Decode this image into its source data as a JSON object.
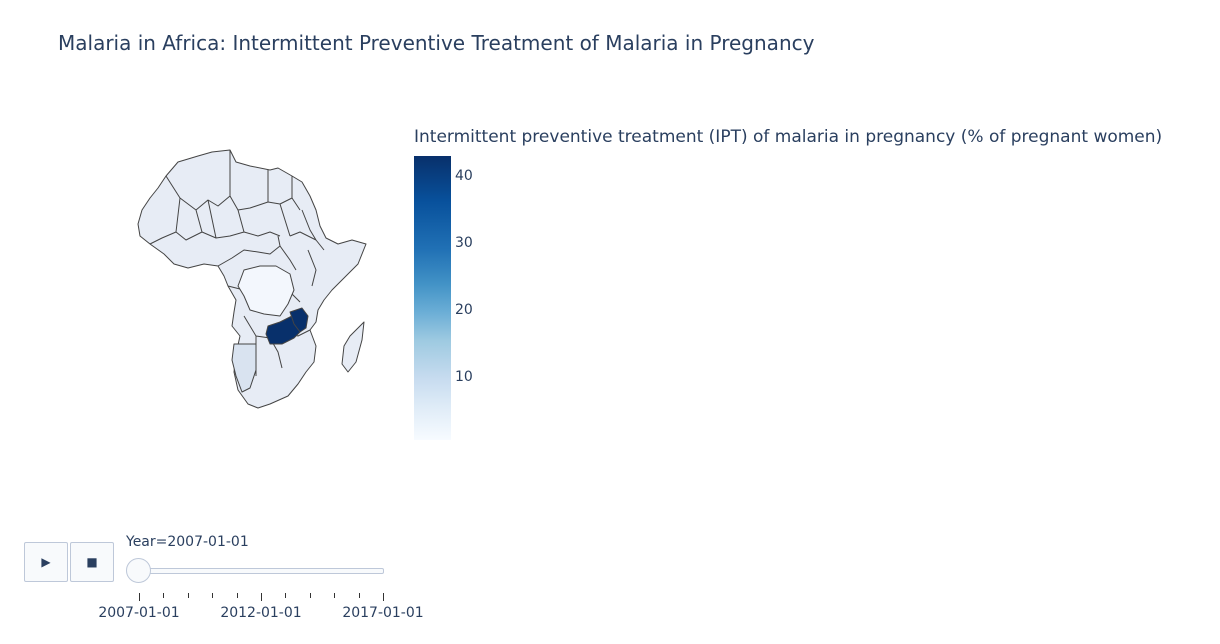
{
  "title": "Malaria in Africa: Intermittent Preventive Treatment of Malaria in Pregnancy",
  "map": {
    "region": "Africa",
    "base_fill": "#e7ecf5",
    "border_color": "#444444",
    "highlighted": [
      {
        "name": "Zambia",
        "color": "#08306b"
      },
      {
        "name": "Malawi",
        "color": "#08306b"
      },
      {
        "name": "DR Congo",
        "color": "#f3f7fd"
      },
      {
        "name": "Namibia",
        "color": "#d9e3f0"
      }
    ]
  },
  "colorbar": {
    "title": "Intermittent preventive treatment (IPT) of malaria in pregnancy (% of pregnant women)",
    "range": [
      0,
      43
    ],
    "ticks": [
      "10",
      "20",
      "30",
      "40"
    ]
  },
  "controls": {
    "play_icon": "play-icon",
    "play_symbol": "▶",
    "stop_icon": "stop-icon",
    "stop_symbol": "■"
  },
  "slider": {
    "current_label": "Year=2007-01-01",
    "tick_labels": [
      "2007-01-01",
      "2012-01-01",
      "2017-01-01"
    ],
    "step_count": 11
  }
}
